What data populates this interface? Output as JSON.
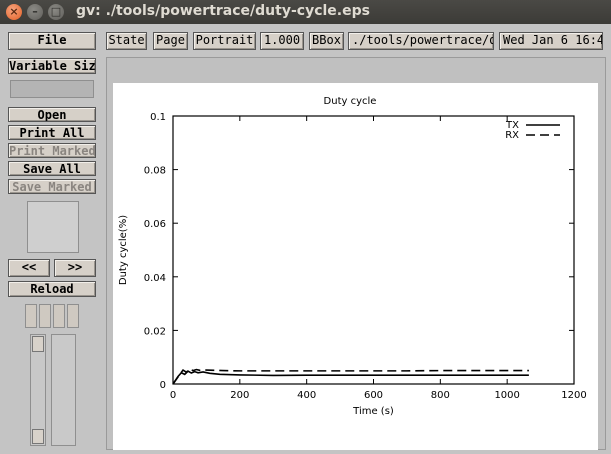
{
  "window": {
    "title": "gv: ./tools/powertrace/duty-cycle.eps",
    "close_glyph": "×",
    "min_glyph": "–",
    "max_glyph": "□"
  },
  "toolbar": {
    "file": "File",
    "state": "State",
    "page": "Page",
    "orientation": "Portrait",
    "zoom": "1.000",
    "bbox": "BBox",
    "filename": "./tools/powertrace/d",
    "date": "Wed Jan  6 16:4"
  },
  "sidebar": {
    "size_label": "Variable Size",
    "open": "Open",
    "print_all": "Print All",
    "print_marked": "Print Marked",
    "save_all": "Save All",
    "save_marked": "Save Marked",
    "prev": "<<",
    "next": ">>",
    "reload": "Reload"
  },
  "chart_data": {
    "type": "line",
    "title": "Duty cycle",
    "xlabel": "Time (s)",
    "ylabel": "Duty cycle(%)",
    "xlim": [
      0,
      1200
    ],
    "ylim": [
      0,
      0.1
    ],
    "xticks": [
      "0",
      "200",
      "400",
      "600",
      "800",
      "1000",
      "1200"
    ],
    "yticks": [
      "0",
      "0.02",
      "0.04",
      "0.06",
      "0.08",
      "0.1"
    ],
    "legend_position": "top-right",
    "series": [
      {
        "name": "TX",
        "style": "solid",
        "x": [
          0,
          15,
          25,
          35,
          45,
          55,
          65,
          75,
          90,
          110,
          140,
          200,
          300,
          400,
          500,
          600,
          700,
          800,
          900,
          1000,
          1065
        ],
        "y": [
          0,
          0.0028,
          0.0042,
          0.0036,
          0.0048,
          0.0041,
          0.0046,
          0.0042,
          0.0045,
          0.004,
          0.0036,
          0.0034,
          0.0032,
          0.0033,
          0.0033,
          0.0033,
          0.0033,
          0.0033,
          0.0033,
          0.0033,
          0.0033
        ]
      },
      {
        "name": "RX",
        "style": "dashed",
        "x": [
          0,
          20,
          30,
          40,
          50,
          60,
          70,
          80,
          100,
          150,
          200,
          300,
          400,
          500,
          600,
          700,
          800,
          900,
          1000,
          1065
        ],
        "y": [
          0,
          0.0035,
          0.0052,
          0.0044,
          0.0056,
          0.005,
          0.0054,
          0.0051,
          0.0052,
          0.005,
          0.0049,
          0.0049,
          0.0049,
          0.0049,
          0.0049,
          0.0049,
          0.005,
          0.005,
          0.005,
          0.005
        ]
      }
    ]
  }
}
